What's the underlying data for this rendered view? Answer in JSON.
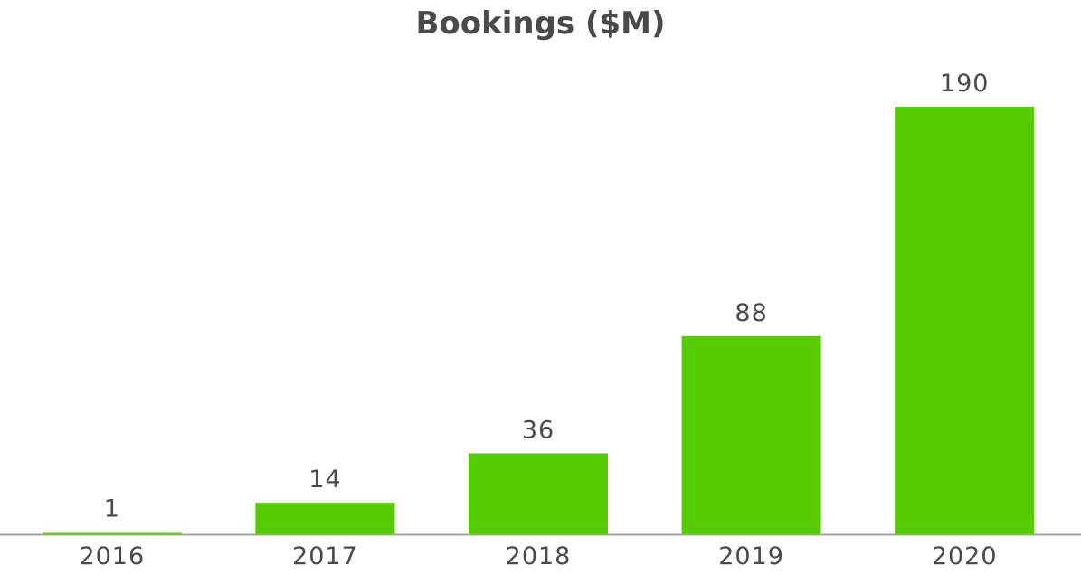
{
  "chart_data": {
    "type": "bar",
    "title": "Bookings ($M)",
    "categories": [
      "2016",
      "2017",
      "2018",
      "2019",
      "2020"
    ],
    "values": [
      1,
      14,
      36,
      88,
      190
    ],
    "data_labels": [
      "1",
      "14",
      "36",
      "88",
      "190"
    ],
    "xlabel": "",
    "ylabel": "",
    "ylim": [
      0,
      190
    ],
    "grid": false,
    "legend": "none",
    "bar_color": "#55cc00",
    "axis_color": "#9e9e9e",
    "text_color": "#4a4a4a"
  }
}
